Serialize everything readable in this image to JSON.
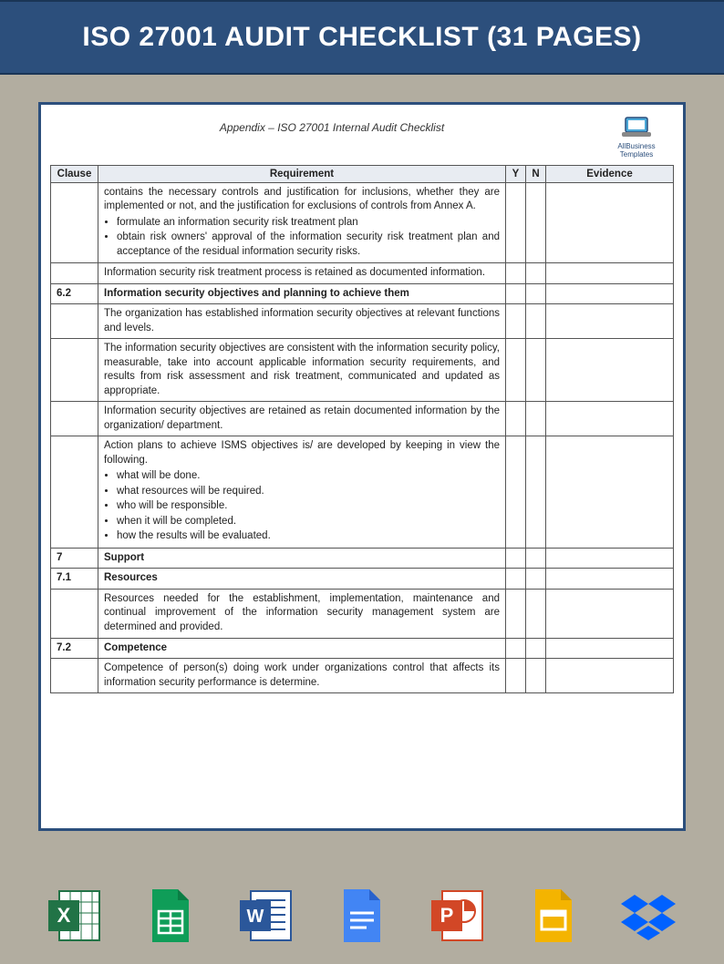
{
  "banner": {
    "title": "ISO 27001 AUDIT CHECKLIST (31 PAGES)"
  },
  "document": {
    "header_title": "Appendix – ISO 27001 Internal Audit Checklist",
    "logo_text": "AllBusiness Templates",
    "columns": {
      "clause": "Clause",
      "requirement": "Requirement",
      "y": "Y",
      "n": "N",
      "evidence": "Evidence"
    },
    "rows": [
      {
        "clause": "",
        "bold": false,
        "text": "contains the necessary controls and justification for inclusions, whether they are implemented or not, and the justification for exclusions of controls from Annex A.",
        "bullets": [
          "formulate an information security risk treatment plan",
          "obtain risk owners' approval of the information security risk treatment plan and acceptance of the residual information security risks."
        ]
      },
      {
        "clause": "",
        "bold": false,
        "text": "Information security risk treatment process is retained as documented information."
      },
      {
        "clause": "6.2",
        "bold": true,
        "text": "Information security objectives and planning to achieve them"
      },
      {
        "clause": "",
        "bold": false,
        "text": "The organization has established information security objectives at relevant functions and levels."
      },
      {
        "clause": "",
        "bold": false,
        "text": "The information security objectives are consistent with the information security policy, measurable, take into account applicable information security requirements, and results from risk assessment and risk treatment, communicated and updated as appropriate."
      },
      {
        "clause": "",
        "bold": false,
        "text": "Information security objectives are retained as retain documented information by the organization/ department."
      },
      {
        "clause": "",
        "bold": false,
        "text": "Action plans to achieve ISMS objectives is/ are developed by keeping in view the following.",
        "bullets": [
          "what will be done.",
          "what resources will be required.",
          "who will be responsible.",
          "when it will be completed.",
          "how the results will be evaluated."
        ]
      },
      {
        "clause": "7",
        "bold": true,
        "text": "Support"
      },
      {
        "clause": "7.1",
        "bold": true,
        "text": "Resources"
      },
      {
        "clause": "",
        "bold": false,
        "text": "Resources needed for the establishment, implementation, maintenance and continual improvement of the information security management system are determined and provided."
      },
      {
        "clause": "7.2",
        "bold": true,
        "text": "Competence"
      },
      {
        "clause": "",
        "bold": false,
        "text": "Competence of person(s) doing work under organizations control that affects its information security performance is determine."
      }
    ]
  },
  "icons": {
    "excel": {
      "bg": "#217346",
      "accent": "#0e5c2f"
    },
    "sheets": {
      "bg": "#0f9d58",
      "accent": "#ffffff"
    },
    "word": {
      "bg": "#2b579a",
      "accent": "#1e3f73"
    },
    "docs": {
      "bg": "#4285f4",
      "accent": "#ffffff"
    },
    "powerpoint": {
      "bg": "#d24726",
      "accent": "#b13b1f"
    },
    "slides": {
      "bg": "#f4b400",
      "accent": "#ffffff"
    },
    "dropbox": {
      "bg": "#0061ff"
    }
  }
}
